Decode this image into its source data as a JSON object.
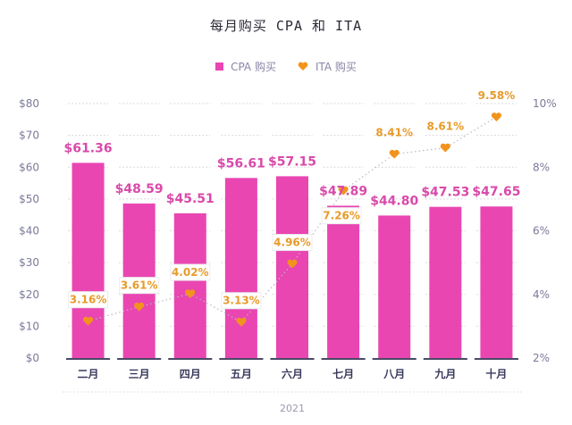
{
  "chart_data": {
    "type": "bar",
    "title": "每月购买 CPA 和 ITA",
    "categories": [
      "二月",
      "三月",
      "四月",
      "五月",
      "六月",
      "七月",
      "八月",
      "九月",
      "十月"
    ],
    "series": [
      {
        "name": "CPA 购买",
        "type": "bar",
        "axis": "left",
        "color": "#e946b2",
        "values": [
          61.36,
          48.59,
          45.51,
          56.61,
          57.15,
          47.89,
          44.8,
          47.53,
          47.65
        ],
        "labels": [
          "$61.36",
          "$48.59",
          "$45.51",
          "$56.61",
          "$57.15",
          "$47.89",
          "$44.80",
          "$47.53",
          "$47.65"
        ]
      },
      {
        "name": "ITA 购买",
        "type": "line",
        "axis": "right",
        "color": "#f2941c",
        "marker": "heart",
        "values": [
          3.16,
          3.61,
          4.02,
          3.13,
          4.96,
          7.26,
          8.41,
          8.61,
          9.58
        ],
        "labels": [
          "3.16%",
          "3.61%",
          "4.02%",
          "3.13%",
          "4.96%",
          "7.26%",
          "8.41%",
          "8.61%",
          "9.58%"
        ]
      }
    ],
    "left_axis": {
      "ylim": [
        0,
        80
      ],
      "ticks": [
        0,
        10,
        20,
        30,
        40,
        50,
        60,
        70,
        80
      ],
      "tick_labels": [
        "$0",
        "$10",
        "$20",
        "$30",
        "$40",
        "$50",
        "$60",
        "$70",
        "$80"
      ]
    },
    "right_axis": {
      "ylim": [
        2,
        10
      ],
      "ticks": [
        2,
        4,
        6,
        8,
        10
      ],
      "tick_labels": [
        "2%",
        "4%",
        "6%",
        "8%",
        "10%"
      ]
    },
    "xlabel": "2021",
    "grid": true,
    "legend": {
      "position": "top-center",
      "entries": [
        "CPA 购买",
        "ITA 购买"
      ]
    }
  }
}
